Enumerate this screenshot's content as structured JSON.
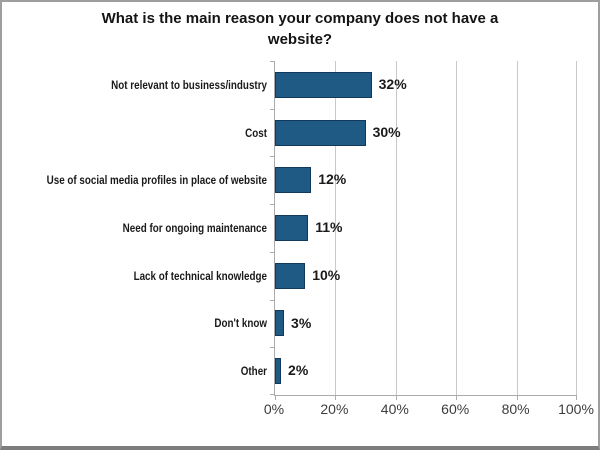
{
  "title": {
    "line1": "What is the main reason your company does not have a",
    "line2": "website?"
  },
  "chart_data": {
    "type": "bar",
    "orientation": "horizontal",
    "title": "What is the main reason your company does not have a website?",
    "categories": [
      "Not relevant to business/industry",
      "Cost",
      "Use of social media profiles in place of website",
      "Need for ongoing maintenance",
      "Lack of technical knowledge",
      "Don't know",
      "Other"
    ],
    "values": [
      32,
      30,
      12,
      11,
      10,
      3,
      2
    ],
    "value_labels": [
      "32%",
      "30%",
      "12%",
      "11%",
      "10%",
      "3%",
      "2%"
    ],
    "xlabel": "",
    "ylabel": "",
    "x_ticks": [
      "0%",
      "20%",
      "40%",
      "60%",
      "80%",
      "100%"
    ],
    "x_tick_values": [
      0,
      20,
      40,
      60,
      80,
      100
    ],
    "xlim": [
      0,
      100
    ],
    "grid": "vertical",
    "legend": "none",
    "bar_color": "#1F5A84",
    "bar_border_color": "#12395B",
    "gridline_color": "#c9c9c9",
    "axis_color": "#ababab"
  }
}
